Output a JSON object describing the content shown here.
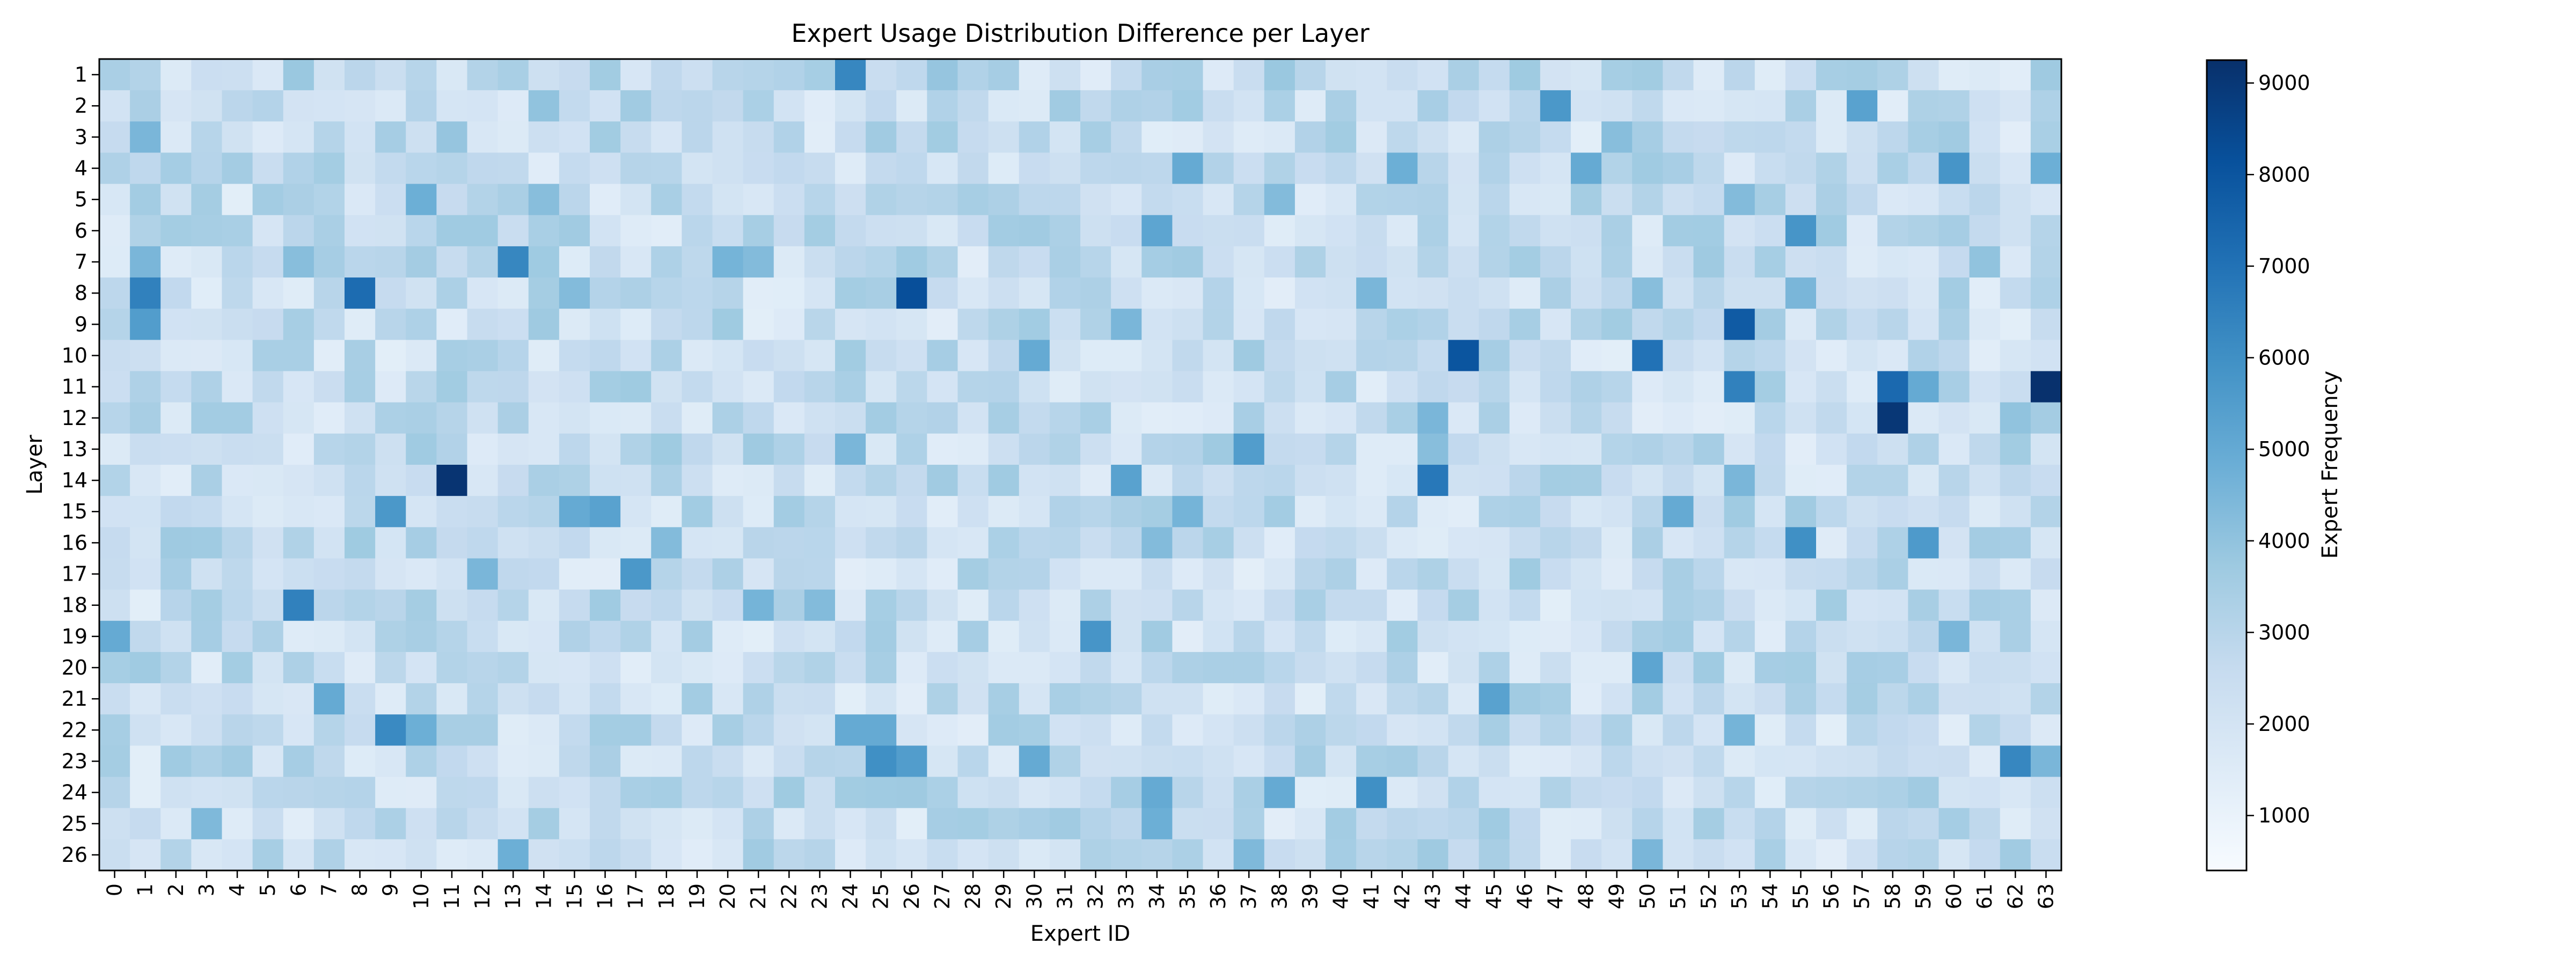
{
  "chart_data": {
    "type": "heatmap",
    "title": "Expert Usage Distribution Difference per Layer",
    "xlabel": "Expert ID",
    "ylabel": "Layer",
    "colorbar": {
      "label": "Expert Frequency",
      "ticks": [
        1000,
        2000,
        3000,
        4000,
        5000,
        6000,
        7000,
        8000,
        9000
      ],
      "range": [
        400,
        9250
      ],
      "colormap": "Blues",
      "stops": [
        "#f7fbff",
        "#deebf7",
        "#c6dbef",
        "#9ecae1",
        "#6baed6",
        "#4292c6",
        "#2171b5",
        "#08519c",
        "#08306b"
      ]
    },
    "x": [
      "0",
      "1",
      "2",
      "3",
      "4",
      "5",
      "6",
      "7",
      "8",
      "9",
      "10",
      "11",
      "12",
      "13",
      "14",
      "15",
      "16",
      "17",
      "18",
      "19",
      "20",
      "21",
      "22",
      "23",
      "24",
      "25",
      "26",
      "27",
      "28",
      "29",
      "30",
      "31",
      "32",
      "33",
      "34",
      "35",
      "36",
      "37",
      "38",
      "39",
      "40",
      "41",
      "42",
      "43",
      "44",
      "45",
      "46",
      "47",
      "48",
      "49",
      "50",
      "51",
      "52",
      "53",
      "54",
      "55",
      "56",
      "57",
      "58",
      "59",
      "60",
      "61",
      "62",
      "63"
    ],
    "y": [
      "1",
      "2",
      "3",
      "4",
      "5",
      "6",
      "7",
      "8",
      "9",
      "10",
      "11",
      "12",
      "13",
      "14",
      "15",
      "16",
      "17",
      "18",
      "19",
      "20",
      "21",
      "22",
      "23",
      "24",
      "25",
      "26"
    ],
    "background_value": 2500,
    "cells": [
      {
        "layer": "1",
        "expert": "0",
        "value": 3400
      },
      {
        "layer": "1",
        "expert": "6",
        "value": 3800
      },
      {
        "layer": "1",
        "expert": "24",
        "value": 6300
      },
      {
        "layer": "1",
        "expert": "27",
        "value": 3900
      },
      {
        "layer": "1",
        "expert": "38",
        "value": 3800
      },
      {
        "layer": "2",
        "expert": "14",
        "value": 4000
      },
      {
        "layer": "2",
        "expert": "47",
        "value": 5700
      },
      {
        "layer": "2",
        "expert": "57",
        "value": 5300
      },
      {
        "layer": "3",
        "expert": "1",
        "value": 4500
      },
      {
        "layer": "3",
        "expert": "11",
        "value": 3900
      },
      {
        "layer": "3",
        "expert": "49",
        "value": 4200
      },
      {
        "layer": "4",
        "expert": "35",
        "value": 5000
      },
      {
        "layer": "4",
        "expert": "42",
        "value": 4800
      },
      {
        "layer": "4",
        "expert": "48",
        "value": 5000
      },
      {
        "layer": "4",
        "expert": "60",
        "value": 5800
      },
      {
        "layer": "4",
        "expert": "63",
        "value": 4800
      },
      {
        "layer": "5",
        "expert": "10",
        "value": 4800
      },
      {
        "layer": "5",
        "expert": "14",
        "value": 4200
      },
      {
        "layer": "5",
        "expert": "38",
        "value": 4300
      },
      {
        "layer": "5",
        "expert": "53",
        "value": 4300
      },
      {
        "layer": "6",
        "expert": "34",
        "value": 5200
      },
      {
        "layer": "6",
        "expert": "55",
        "value": 5800
      },
      {
        "layer": "7",
        "expert": "1",
        "value": 4500
      },
      {
        "layer": "7",
        "expert": "6",
        "value": 4200
      },
      {
        "layer": "7",
        "expert": "13",
        "value": 6300
      },
      {
        "layer": "7",
        "expert": "20",
        "value": 4600
      },
      {
        "layer": "7",
        "expert": "21",
        "value": 4300
      },
      {
        "layer": "7",
        "expert": "61",
        "value": 4000
      },
      {
        "layer": "8",
        "expert": "1",
        "value": 6500
      },
      {
        "layer": "8",
        "expert": "8",
        "value": 7200
      },
      {
        "layer": "8",
        "expert": "15",
        "value": 4300
      },
      {
        "layer": "8",
        "expert": "26",
        "value": 8200
      },
      {
        "layer": "8",
        "expert": "41",
        "value": 4500
      },
      {
        "layer": "8",
        "expert": "50",
        "value": 4200
      },
      {
        "layer": "8",
        "expert": "55",
        "value": 4500
      },
      {
        "layer": "9",
        "expert": "1",
        "value": 5500
      },
      {
        "layer": "9",
        "expert": "33",
        "value": 4500
      },
      {
        "layer": "9",
        "expert": "53",
        "value": 7800
      },
      {
        "layer": "10",
        "expert": "30",
        "value": 5000
      },
      {
        "layer": "10",
        "expert": "44",
        "value": 8000
      },
      {
        "layer": "10",
        "expert": "50",
        "value": 7000
      },
      {
        "layer": "11",
        "expert": "53",
        "value": 6500
      },
      {
        "layer": "11",
        "expert": "58",
        "value": 7300
      },
      {
        "layer": "11",
        "expert": "59",
        "value": 5000
      },
      {
        "layer": "11",
        "expert": "63",
        "value": 9200
      },
      {
        "layer": "12",
        "expert": "43",
        "value": 4500
      },
      {
        "layer": "12",
        "expert": "58",
        "value": 9000
      },
      {
        "layer": "12",
        "expert": "62",
        "value": 4000
      },
      {
        "layer": "13",
        "expert": "24",
        "value": 4500
      },
      {
        "layer": "13",
        "expert": "37",
        "value": 5500
      },
      {
        "layer": "13",
        "expert": "43",
        "value": 4200
      },
      {
        "layer": "14",
        "expert": "11",
        "value": 9100
      },
      {
        "layer": "14",
        "expert": "33",
        "value": 5300
      },
      {
        "layer": "14",
        "expert": "43",
        "value": 6800
      },
      {
        "layer": "14",
        "expert": "53",
        "value": 4500
      },
      {
        "layer": "15",
        "expert": "9",
        "value": 5700
      },
      {
        "layer": "15",
        "expert": "15",
        "value": 5000
      },
      {
        "layer": "15",
        "expert": "16",
        "value": 5300
      },
      {
        "layer": "15",
        "expert": "35",
        "value": 4600
      },
      {
        "layer": "15",
        "expert": "51",
        "value": 5000
      },
      {
        "layer": "16",
        "expert": "18",
        "value": 4300
      },
      {
        "layer": "16",
        "expert": "34",
        "value": 4300
      },
      {
        "layer": "16",
        "expert": "55",
        "value": 6000
      },
      {
        "layer": "16",
        "expert": "59",
        "value": 5600
      },
      {
        "layer": "17",
        "expert": "12",
        "value": 4500
      },
      {
        "layer": "17",
        "expert": "17",
        "value": 5700
      },
      {
        "layer": "18",
        "expert": "6",
        "value": 6500
      },
      {
        "layer": "18",
        "expert": "21",
        "value": 4600
      },
      {
        "layer": "18",
        "expert": "23",
        "value": 4300
      },
      {
        "layer": "19",
        "expert": "0",
        "value": 5000
      },
      {
        "layer": "19",
        "expert": "32",
        "value": 5800
      },
      {
        "layer": "19",
        "expert": "60",
        "value": 4500
      },
      {
        "layer": "20",
        "expert": "50",
        "value": 5200
      },
      {
        "layer": "21",
        "expert": "7",
        "value": 5000
      },
      {
        "layer": "21",
        "expert": "45",
        "value": 5300
      },
      {
        "layer": "22",
        "expert": "9",
        "value": 6200
      },
      {
        "layer": "22",
        "expert": "10",
        "value": 4800
      },
      {
        "layer": "22",
        "expert": "24",
        "value": 5000
      },
      {
        "layer": "22",
        "expert": "25",
        "value": 5000
      },
      {
        "layer": "22",
        "expert": "53",
        "value": 4600
      },
      {
        "layer": "23",
        "expert": "25",
        "value": 6000
      },
      {
        "layer": "23",
        "expert": "26",
        "value": 5500
      },
      {
        "layer": "23",
        "expert": "30",
        "value": 5000
      },
      {
        "layer": "23",
        "expert": "62",
        "value": 6300
      },
      {
        "layer": "23",
        "expert": "63",
        "value": 4500
      },
      {
        "layer": "24",
        "expert": "34",
        "value": 5000
      },
      {
        "layer": "24",
        "expert": "38",
        "value": 5000
      },
      {
        "layer": "24",
        "expert": "41",
        "value": 6000
      },
      {
        "layer": "25",
        "expert": "3",
        "value": 4400
      },
      {
        "layer": "25",
        "expert": "34",
        "value": 4800
      },
      {
        "layer": "26",
        "expert": "13",
        "value": 4800
      },
      {
        "layer": "26",
        "expert": "37",
        "value": 4400
      },
      {
        "layer": "26",
        "expert": "50",
        "value": 4500
      }
    ]
  }
}
